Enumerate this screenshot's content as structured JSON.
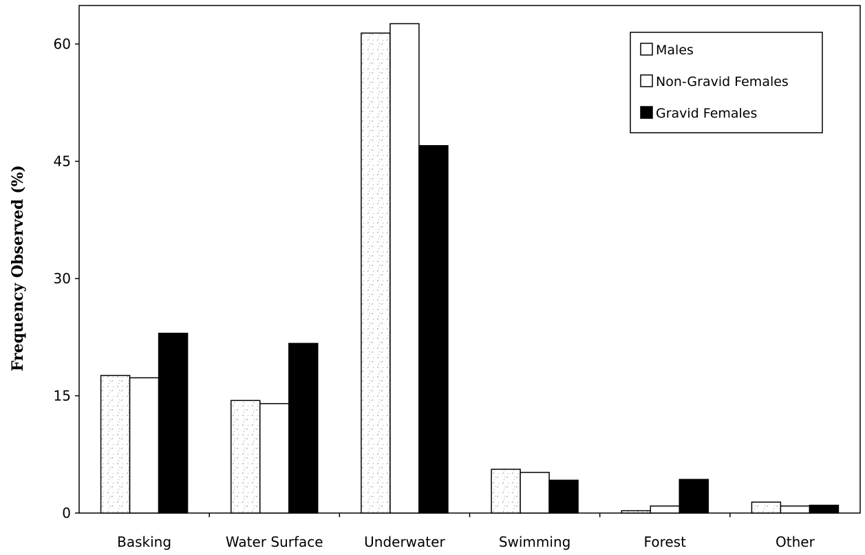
{
  "chart_data": {
    "type": "bar",
    "title": "",
    "xlabel": "",
    "ylabel": "Frequency Observed (%)",
    "ylim": [
      0,
      66
    ],
    "yticks": [
      0,
      15,
      30,
      45,
      60
    ],
    "categories": [
      "Basking",
      "Water Surface",
      "Underwater",
      "Swimming",
      "Forest",
      "Other"
    ],
    "series": [
      {
        "name": "Males",
        "values": [
          17.6,
          14.4,
          61.4,
          5.6,
          0.3,
          1.4
        ],
        "fill": "#ffffff",
        "pattern": "speckled"
      },
      {
        "name": "Non-Gravid Females",
        "values": [
          17.3,
          14.0,
          62.6,
          5.2,
          0.9,
          0.9
        ],
        "fill": "#ffffff"
      },
      {
        "name": "Gravid Females",
        "values": [
          23.0,
          21.7,
          47.0,
          4.2,
          4.3,
          1.0
        ],
        "fill": "#000000"
      }
    ],
    "legend_position": "top-right",
    "grid": false
  }
}
